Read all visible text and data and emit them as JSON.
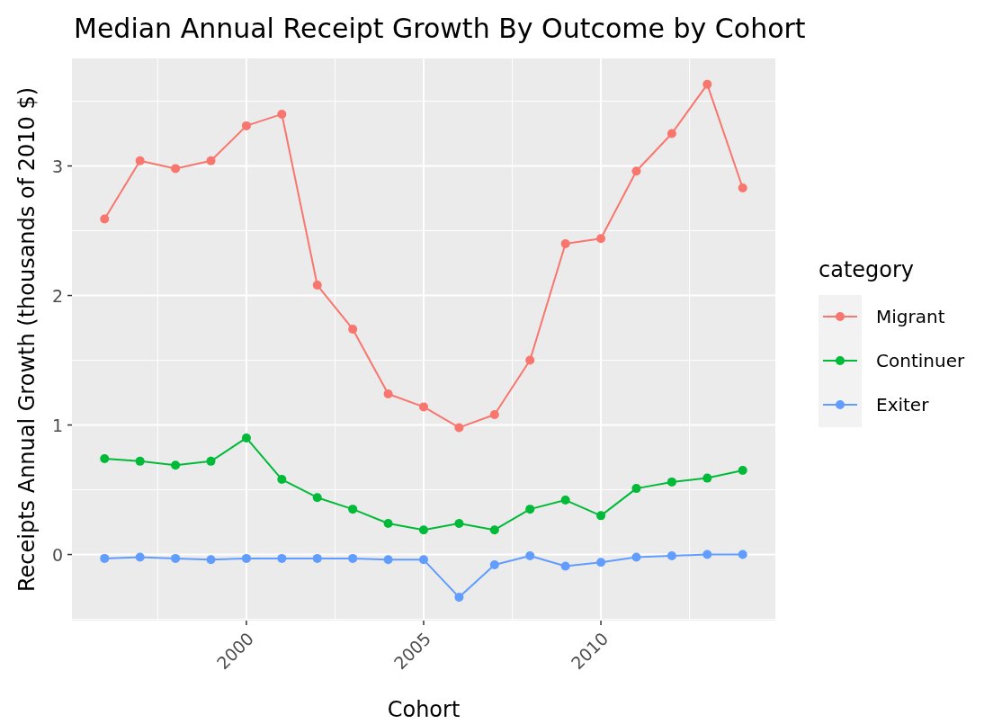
{
  "chart_data": {
    "type": "line",
    "title": "Median Annual Receipt Growth By Outcome by Cohort",
    "xlabel": "Cohort",
    "ylabel": "Receipts Annual Growth (thousands of 2010 $)",
    "legend_title": "category",
    "x": [
      1996,
      1997,
      1998,
      1999,
      2000,
      2001,
      2002,
      2003,
      2004,
      2005,
      2006,
      2007,
      2008,
      2009,
      2010,
      2011,
      2012,
      2013,
      2014
    ],
    "series": [
      {
        "name": "Migrant",
        "color": "#f8766d",
        "values": [
          2.59,
          3.04,
          2.98,
          3.04,
          3.31,
          3.4,
          2.08,
          1.74,
          1.24,
          1.14,
          0.98,
          1.08,
          1.5,
          2.4,
          2.44,
          2.96,
          3.25,
          3.63,
          2.83
        ]
      },
      {
        "name": "Continuer",
        "color": "#00ba38",
        "values": [
          0.74,
          0.72,
          0.69,
          0.72,
          0.9,
          0.58,
          0.44,
          0.35,
          0.24,
          0.19,
          0.24,
          0.19,
          0.35,
          0.42,
          0.3,
          0.51,
          0.56,
          0.59,
          0.65
        ]
      },
      {
        "name": "Exiter",
        "color": "#619cff",
        "values": [
          -0.03,
          -0.02,
          -0.03,
          -0.04,
          -0.03,
          -0.03,
          -0.03,
          -0.03,
          -0.04,
          -0.04,
          -0.33,
          -0.08,
          -0.01,
          -0.09,
          -0.06,
          -0.02,
          -0.01,
          0,
          0
        ]
      }
    ],
    "xlim": [
      1995.08,
      2014.92
    ],
    "ylim": [
      -0.51,
      3.83
    ],
    "xticks": [
      2000,
      2005,
      2010
    ],
    "yticks": [
      0,
      1,
      2,
      3
    ],
    "grid": true,
    "legend": "right",
    "marker": "circle",
    "line_style": "solid"
  }
}
